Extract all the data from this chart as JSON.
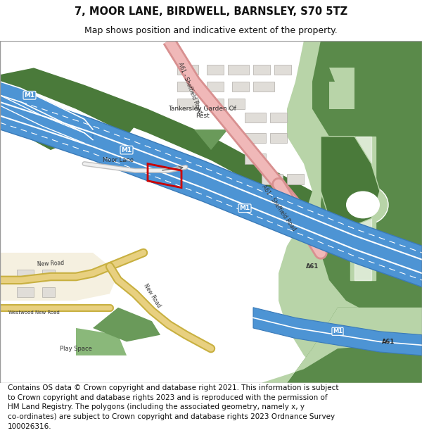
{
  "title": "7, MOOR LANE, BIRDWELL, BARNSLEY, S70 5TZ",
  "subtitle": "Map shows position and indicative extent of the property.",
  "footer_lines": [
    "Contains OS data © Crown copyright and database right 2021. This information is subject",
    "to Crown copyright and database rights 2023 and is reproduced with the permission of",
    "HM Land Registry. The polygons (including the associated geometry, namely x, y",
    "co-ordinates) are subject to Crown copyright and database rights 2023 Ordnance Survey",
    "100026316."
  ],
  "title_fontsize": 10.5,
  "subtitle_fontsize": 9,
  "footer_fontsize": 7.5,
  "fig_bg": "#ffffff",
  "map_bg": "#ffffff",
  "motorway_blue": "#4d94d4",
  "motorway_edge": "#3a7ab8",
  "motorway_white": "#ffffff",
  "green_dark": "#4a7a3a",
  "green_med": "#6a9a5a",
  "green_light": "#8ab87a",
  "green_pale": "#b8d4a8",
  "green_junction": "#5a8a4a",
  "pink_road": "#f0b8b8",
  "pink_road_edge": "#d89090",
  "yellow_road": "#e8d080",
  "yellow_edge": "#c8b040",
  "plot_color": "#cc0000",
  "building_fill": "#e0ddd8",
  "building_edge": "#b0ada8",
  "road_grey": "#d8d5d0",
  "road_white": "#f8f8f8"
}
